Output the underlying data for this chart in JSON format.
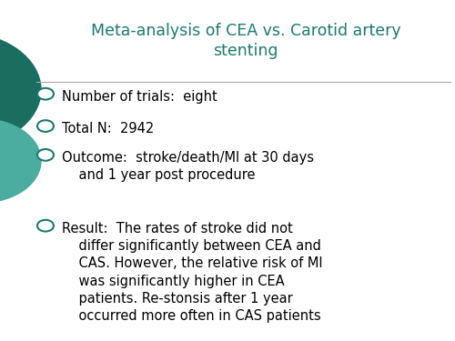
{
  "title_line1": "Meta-analysis of CEA vs. Carotid artery",
  "title_line2": "stenting",
  "title_color": "#1a7a6e",
  "background_color": "#ffffff",
  "bullet_color": "#1a7a6e",
  "text_color": "#000000",
  "bullets": [
    "Number of trials:  eight",
    "Total N:  2942",
    "Outcome:  stroke/death/MI at 30 days\n    and 1 year post procedure",
    "Result:  The rates of stroke did not\n    differ significantly between CEA and\n    CAS. However, the relative risk of MI\n    was significantly higher in CEA\n    patients. Re-stonsis after 1 year\n    occurred more often in CAS patients"
  ],
  "circle_large_color": "#1a6e60",
  "circle_small_color": "#4aada0",
  "figsize": [
    5.0,
    3.75
  ],
  "dpi": 100
}
